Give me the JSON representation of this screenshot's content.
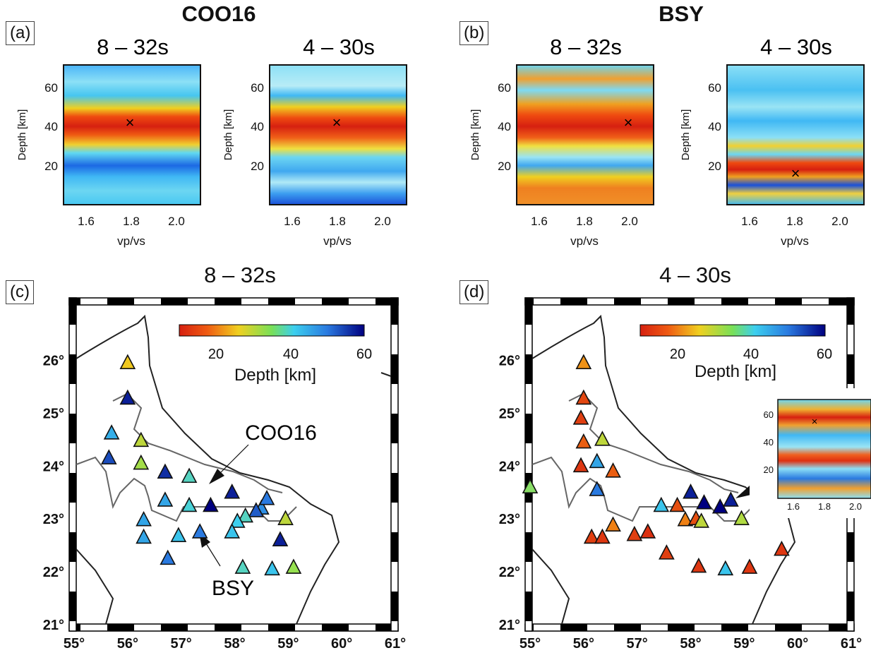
{
  "panel_a": {
    "label": "(a)",
    "title": "COO16"
  },
  "panel_b": {
    "label": "(b)",
    "title": "BSY"
  },
  "panel_c": {
    "label": "(c)",
    "title": "8 – 32s",
    "annot1": "COO16",
    "annot2": "BSY"
  },
  "panel_d": {
    "label": "(d)",
    "title": "4 – 30s"
  },
  "colors": {
    "red": "#d62010",
    "yellow": "#f0d020",
    "cyan": "#3ccfee",
    "blue": "#1028c0",
    "navy": "#000080"
  },
  "heatmaps": [
    {
      "title": "8 – 32s",
      "xlabel": "vp/vs",
      "ylabel": "Depth [km]",
      "xticks": [
        "1.6",
        "1.8",
        "2.0"
      ],
      "yticks": [
        "20",
        "40",
        "60"
      ]
    },
    {
      "title": "4 – 30s",
      "xlabel": "vp/vs",
      "ylabel": "Depth [km]",
      "xticks": [
        "1.6",
        "1.8",
        "2.0"
      ],
      "yticks": [
        "20",
        "40",
        "60"
      ]
    },
    {
      "title": "8 – 32s",
      "xlabel": "vp/vs",
      "ylabel": "Depth [km]",
      "xticks": [
        "1.6",
        "1.8",
        "2.0"
      ],
      "yticks": [
        "20",
        "40",
        "60"
      ]
    },
    {
      "title": "4 – 30s",
      "xlabel": "vp/vs",
      "ylabel": "Depth [km]",
      "xticks": [
        "1.6",
        "1.8",
        "2.0"
      ],
      "yticks": [
        "20",
        "40",
        "60"
      ]
    }
  ],
  "maps": [
    {
      "lat_ticks": [
        "26°",
        "25°",
        "24°",
        "23°",
        "22°",
        "21°"
      ],
      "lon_ticks": [
        "55°",
        "56°",
        "57°",
        "58°",
        "59°",
        "60°",
        "61°"
      ],
      "colorbar": {
        "ticks": [
          "20",
          "40",
          "60"
        ],
        "label": "Depth [km]"
      }
    },
    {
      "lat_ticks": [
        "26°",
        "25°",
        "24°",
        "23°",
        "22°",
        "21°"
      ],
      "lon_ticks": [
        "55°",
        "56°",
        "57°",
        "58°",
        "59°",
        "60°",
        "61°"
      ],
      "colorbar": {
        "ticks": [
          "20",
          "40",
          "60"
        ],
        "label": "Depth [km]"
      }
    }
  ],
  "inset": {
    "xticks": [
      "1.6",
      "1.8",
      "2.0"
    ],
    "yticks": [
      "20",
      "40",
      "60"
    ]
  },
  "chart_data": [
    {
      "type": "heatmap",
      "panel": "a",
      "title": "8 – 32s",
      "xlabel": "vp/vs",
      "ylabel": "Depth [km]",
      "xlim": [
        1.5,
        2.1
      ],
      "ylim": [
        0,
        72
      ],
      "best_fit": {
        "vp_vs": 1.86,
        "depth": 42
      }
    },
    {
      "type": "heatmap",
      "panel": "a",
      "title": "4 – 30s",
      "xlabel": "vp/vs",
      "ylabel": "Depth [km]",
      "xlim": [
        1.5,
        2.1
      ],
      "ylim": [
        0,
        72
      ],
      "best_fit": {
        "vp_vs": 1.8,
        "depth": 42
      }
    },
    {
      "type": "heatmap",
      "panel": "b",
      "title": "8 – 32s",
      "xlabel": "vp/vs",
      "ylabel": "Depth [km]",
      "xlim": [
        1.5,
        2.1
      ],
      "ylim": [
        0,
        72
      ],
      "best_fit": {
        "vp_vs": 1.99,
        "depth": 42
      }
    },
    {
      "type": "heatmap",
      "panel": "b",
      "title": "4 – 30s",
      "xlabel": "vp/vs",
      "ylabel": "Depth [km]",
      "xlim": [
        1.5,
        2.1
      ],
      "ylim": [
        0,
        72
      ],
      "best_fit": {
        "vp_vs": 1.8,
        "depth": 17
      }
    },
    {
      "type": "scatter",
      "panel": "c",
      "title": "8 – 32s",
      "xlim": [
        55,
        61
      ],
      "ylim": [
        21,
        26.5
      ],
      "colorbar_range": [
        10,
        60
      ],
      "stations": [
        {
          "lon": 56.0,
          "lat": 25.95,
          "depth": 30
        },
        {
          "lon": 56.0,
          "lat": 25.28,
          "depth": 58
        },
        {
          "lon": 55.7,
          "lat": 24.62,
          "depth": 47
        },
        {
          "lon": 56.25,
          "lat": 24.48,
          "depth": 34
        },
        {
          "lon": 55.65,
          "lat": 24.15,
          "depth": 55
        },
        {
          "lon": 56.25,
          "lat": 24.05,
          "depth": 36
        },
        {
          "lon": 56.7,
          "lat": 23.88,
          "depth": 57
        },
        {
          "lon": 57.15,
          "lat": 23.8,
          "depth": 42
        },
        {
          "lon": 57.95,
          "lat": 23.5,
          "depth": 58
        },
        {
          "lon": 56.7,
          "lat": 23.35,
          "depth": 48
        },
        {
          "lon": 57.15,
          "lat": 23.25,
          "depth": 43
        },
        {
          "lon": 57.55,
          "lat": 23.25,
          "depth": 62
        },
        {
          "lon": 58.5,
          "lat": 23.2,
          "depth": 50
        },
        {
          "lon": 58.4,
          "lat": 23.15,
          "depth": 54
        },
        {
          "lon": 58.6,
          "lat": 23.38,
          "depth": 52
        },
        {
          "lon": 58.2,
          "lat": 23.05,
          "depth": 42
        },
        {
          "lon": 58.05,
          "lat": 22.95,
          "depth": 44
        },
        {
          "lon": 58.95,
          "lat": 23.0,
          "depth": 34
        },
        {
          "lon": 56.3,
          "lat": 22.98,
          "depth": 48
        },
        {
          "lon": 56.3,
          "lat": 22.65,
          "depth": 48
        },
        {
          "lon": 56.95,
          "lat": 22.68,
          "depth": 45
        },
        {
          "lon": 57.35,
          "lat": 22.75,
          "depth": 52
        },
        {
          "lon": 57.95,
          "lat": 22.75,
          "depth": 45
        },
        {
          "lon": 58.85,
          "lat": 22.6,
          "depth": 58
        },
        {
          "lon": 56.75,
          "lat": 22.25,
          "depth": 52
        },
        {
          "lon": 58.15,
          "lat": 22.08,
          "depth": 42
        },
        {
          "lon": 58.7,
          "lat": 22.05,
          "depth": 45
        },
        {
          "lon": 59.1,
          "lat": 22.08,
          "depth": 37
        }
      ]
    },
    {
      "type": "scatter",
      "panel": "d",
      "title": "4 – 30s",
      "xlim": [
        55,
        61
      ],
      "ylim": [
        21,
        26.5
      ],
      "colorbar_range": [
        10,
        60
      ],
      "stations": [
        {
          "lon": 56.0,
          "lat": 25.95,
          "depth": 24
        },
        {
          "lon": 56.0,
          "lat": 25.28,
          "depth": 15
        },
        {
          "lon": 55.95,
          "lat": 24.9,
          "depth": 14
        },
        {
          "lon": 56.0,
          "lat": 24.45,
          "depth": 18
        },
        {
          "lon": 55.95,
          "lat": 24.0,
          "depth": 13
        },
        {
          "lon": 56.35,
          "lat": 24.5,
          "depth": 34
        },
        {
          "lon": 56.25,
          "lat": 24.08,
          "depth": 48
        },
        {
          "lon": 56.55,
          "lat": 23.9,
          "depth": 18
        },
        {
          "lon": 55.0,
          "lat": 23.6,
          "depth": 38
        },
        {
          "lon": 56.25,
          "lat": 23.55,
          "depth": 52
        },
        {
          "lon": 57.45,
          "lat": 23.25,
          "depth": 45
        },
        {
          "lon": 57.75,
          "lat": 23.25,
          "depth": 16
        },
        {
          "lon": 58.0,
          "lat": 23.5,
          "depth": 58
        },
        {
          "lon": 58.25,
          "lat": 23.3,
          "depth": 60
        },
        {
          "lon": 58.55,
          "lat": 23.22,
          "depth": 62
        },
        {
          "lon": 58.75,
          "lat": 23.35,
          "depth": 58
        },
        {
          "lon": 57.9,
          "lat": 22.98,
          "depth": 22
        },
        {
          "lon": 58.1,
          "lat": 23.0,
          "depth": 16
        },
        {
          "lon": 58.2,
          "lat": 22.95,
          "depth": 34
        },
        {
          "lon": 58.95,
          "lat": 23.0,
          "depth": 35
        },
        {
          "lon": 56.55,
          "lat": 22.88,
          "depth": 22
        },
        {
          "lon": 56.15,
          "lat": 22.65,
          "depth": 14
        },
        {
          "lon": 56.35,
          "lat": 22.65,
          "depth": 13
        },
        {
          "lon": 56.95,
          "lat": 22.7,
          "depth": 14
        },
        {
          "lon": 57.2,
          "lat": 22.75,
          "depth": 12
        },
        {
          "lon": 57.55,
          "lat": 22.35,
          "depth": 14
        },
        {
          "lon": 58.15,
          "lat": 22.1,
          "depth": 13
        },
        {
          "lon": 58.65,
          "lat": 22.05,
          "depth": 45
        },
        {
          "lon": 59.1,
          "lat": 22.08,
          "depth": 13
        },
        {
          "lon": 59.7,
          "lat": 22.42,
          "depth": 13
        }
      ]
    }
  ]
}
